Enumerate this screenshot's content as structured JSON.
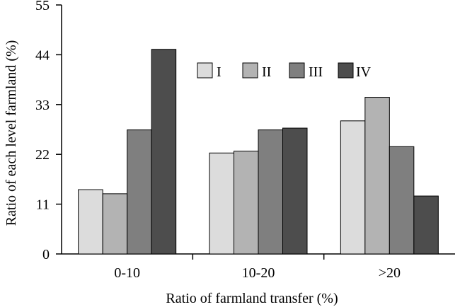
{
  "chart_data": {
    "type": "bar",
    "title": "",
    "xlabel": "Ratio of farmland transfer (%)",
    "ylabel": "Ratio of each level farmland (%)",
    "categories": [
      "0-10",
      "10-20",
      ">20"
    ],
    "ylim": [
      0,
      55
    ],
    "yticks": [
      "0",
      "11",
      "22",
      "33",
      "44",
      "55"
    ],
    "grid": false,
    "legend_position": "top-right",
    "series": [
      {
        "name": "I",
        "color": "#dcdcdc",
        "values": [
          14.2,
          22.3,
          29.4
        ]
      },
      {
        "name": "II",
        "color": "#b3b3b3",
        "values": [
          13.3,
          22.7,
          34.6
        ]
      },
      {
        "name": "III",
        "color": "#7f7f7f",
        "values": [
          27.4,
          27.4,
          23.7
        ]
      },
      {
        "name": "IV",
        "color": "#4d4d4d",
        "values": [
          45.2,
          27.8,
          12.8
        ]
      }
    ]
  }
}
